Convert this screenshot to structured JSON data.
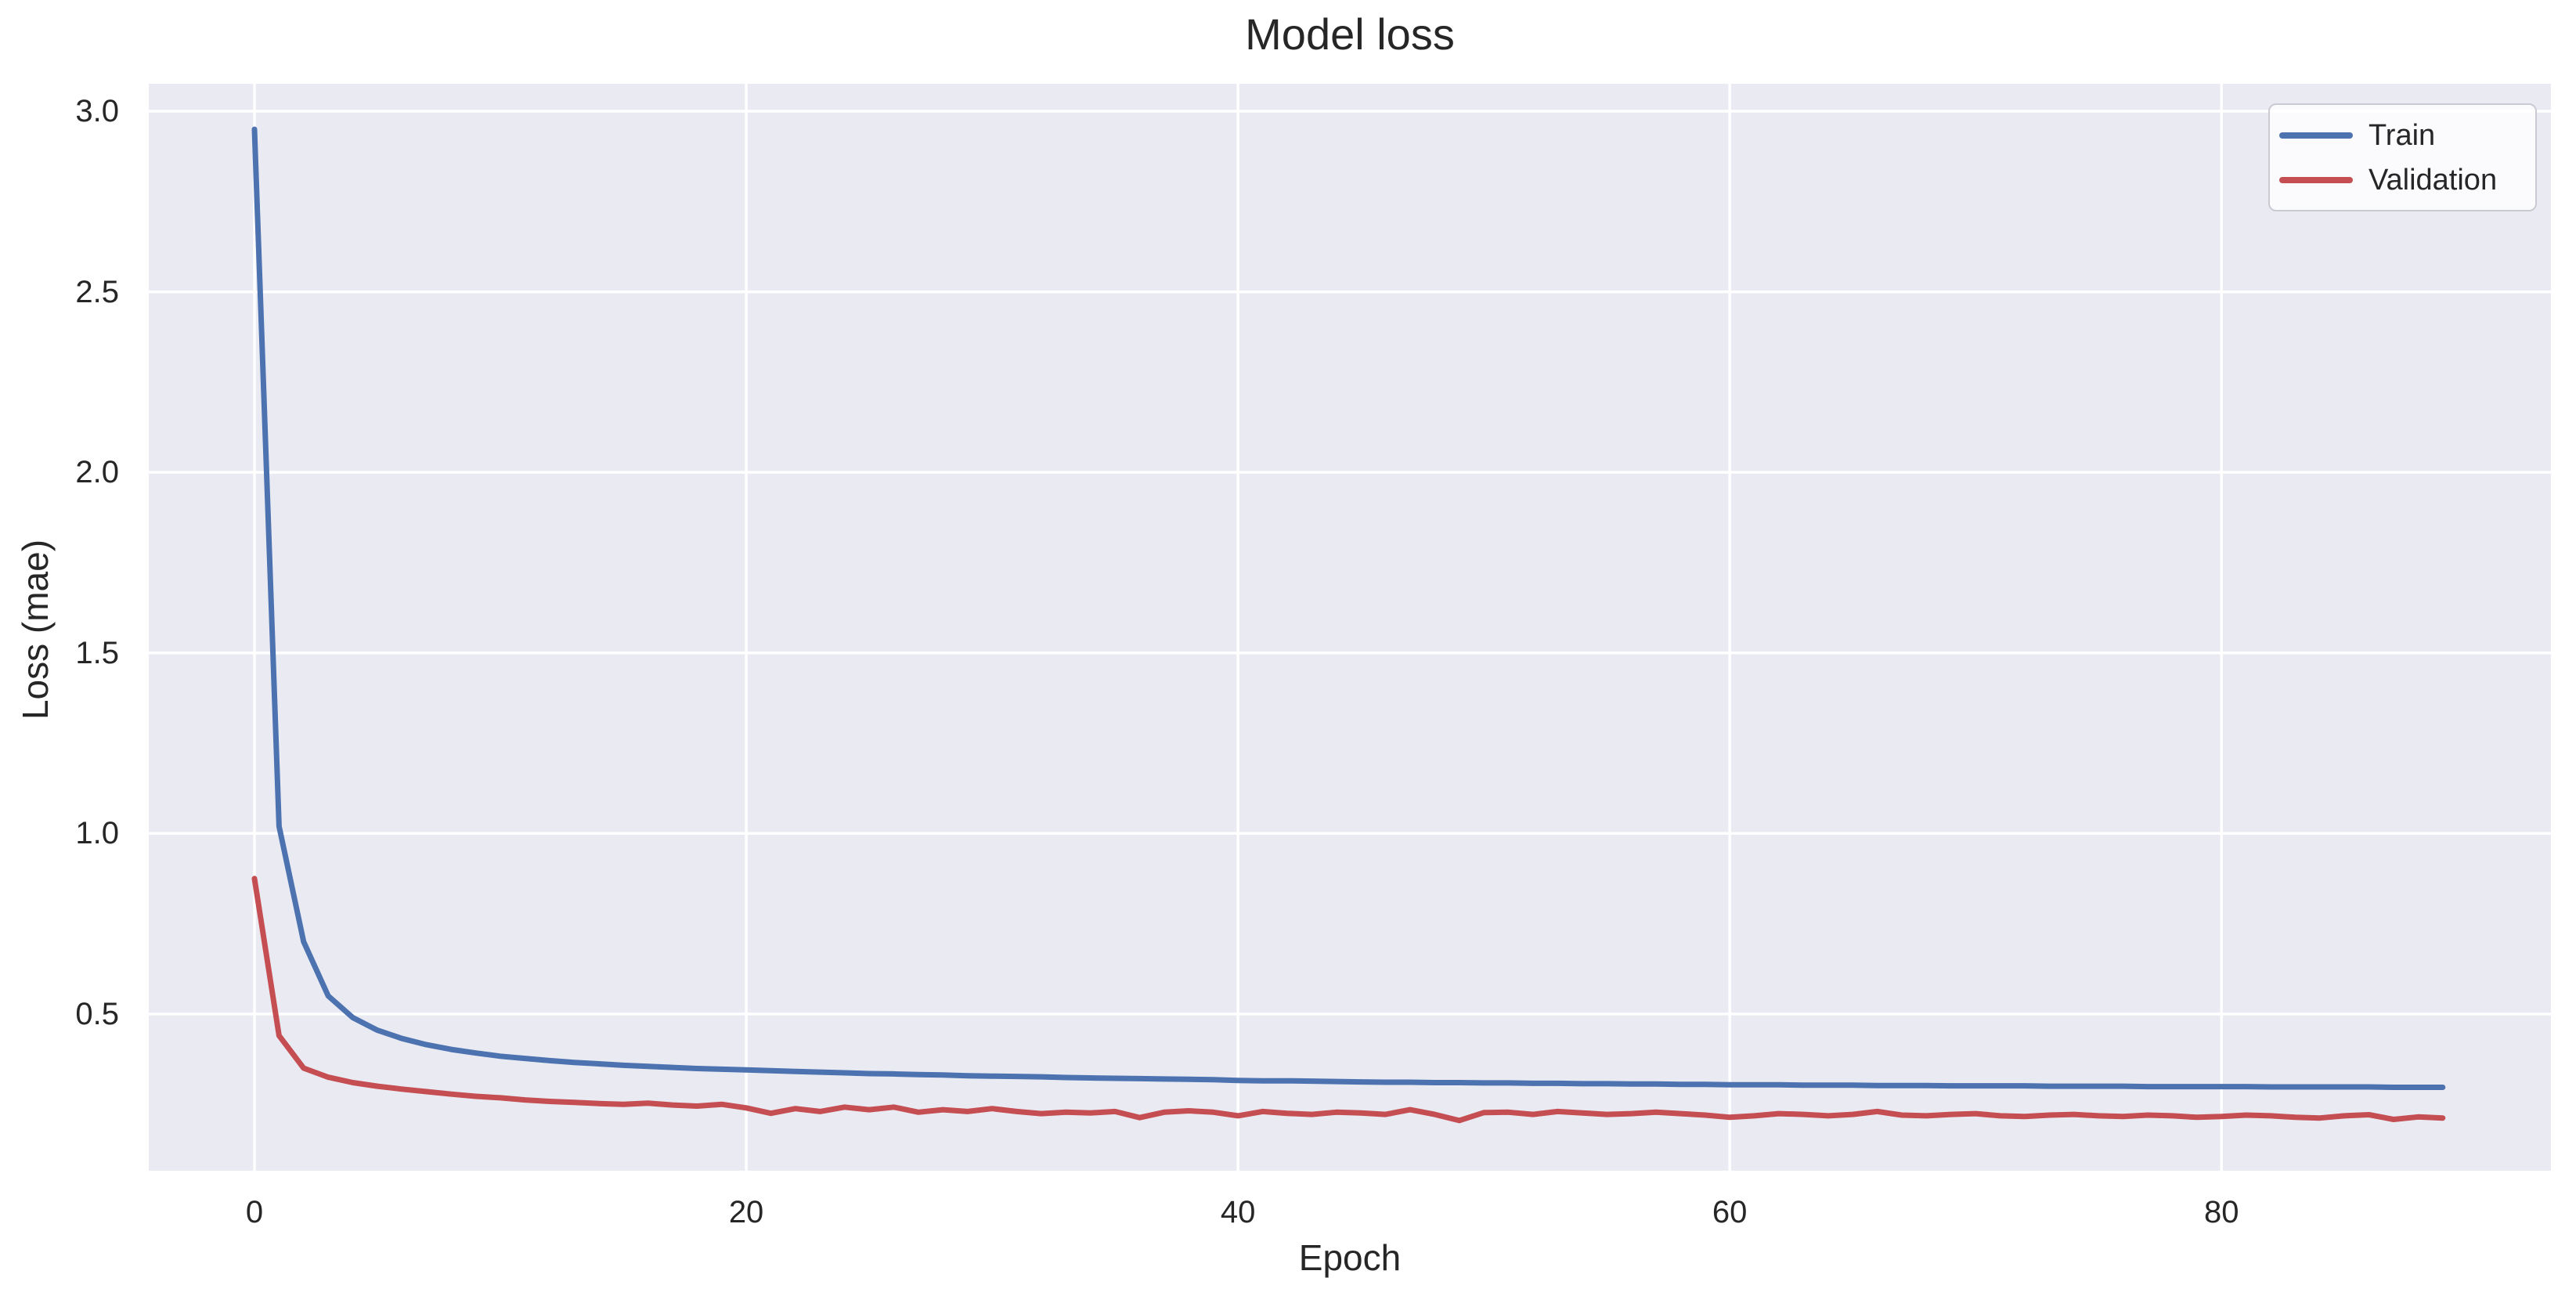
{
  "figure": {
    "title": "Model loss"
  },
  "axes": {
    "xlabel": "Epoch",
    "ylabel": "Loss (mae)"
  },
  "legend": {
    "entries": [
      {
        "label": "Train",
        "color": "#4c72b0"
      },
      {
        "label": "Validation",
        "color": "#c44e52"
      }
    ]
  },
  "colors": {
    "figure_bg": "#ffffff",
    "plot_bg": "#eaeaf2",
    "grid": "#ffffff",
    "text": "#262626",
    "train": "#4c72b0",
    "validation": "#c44e52"
  },
  "chart_data": {
    "type": "line",
    "title": "Model loss",
    "xlabel": "Epoch",
    "ylabel": "Loss (mae)",
    "grid": true,
    "legend_position": "upper right",
    "xlim": [
      -4.3,
      93.4
    ],
    "ylim": [
      0.066,
      3.076
    ],
    "x_ticks": [
      0,
      20,
      40,
      60,
      80
    ],
    "y_ticks": [
      0.5,
      1.0,
      1.5,
      2.0,
      2.5,
      3.0
    ],
    "x": [
      0,
      1,
      2,
      3,
      4,
      5,
      6,
      7,
      8,
      9,
      10,
      11,
      12,
      13,
      14,
      15,
      16,
      17,
      18,
      19,
      20,
      21,
      22,
      23,
      24,
      25,
      26,
      27,
      28,
      29,
      30,
      31,
      32,
      33,
      34,
      35,
      36,
      37,
      38,
      39,
      40,
      41,
      42,
      43,
      44,
      45,
      46,
      47,
      48,
      49,
      50,
      51,
      52,
      53,
      54,
      55,
      56,
      57,
      58,
      59,
      60,
      61,
      62,
      63,
      64,
      65,
      66,
      67,
      68,
      69,
      70,
      71,
      72,
      73,
      74,
      75,
      76,
      77,
      78,
      79,
      80,
      81,
      82,
      83,
      84,
      85,
      86,
      87,
      88,
      89
    ],
    "series": [
      {
        "name": "Train",
        "color": "#4c72b0",
        "values": [
          2.95,
          1.02,
          0.7,
          0.55,
          0.49,
          0.455,
          0.432,
          0.415,
          0.402,
          0.392,
          0.383,
          0.377,
          0.371,
          0.366,
          0.362,
          0.358,
          0.355,
          0.352,
          0.349,
          0.347,
          0.345,
          0.343,
          0.341,
          0.339,
          0.337,
          0.335,
          0.334,
          0.332,
          0.331,
          0.329,
          0.328,
          0.327,
          0.326,
          0.324,
          0.323,
          0.322,
          0.321,
          0.32,
          0.319,
          0.318,
          0.316,
          0.315,
          0.315,
          0.314,
          0.313,
          0.312,
          0.311,
          0.311,
          0.31,
          0.31,
          0.309,
          0.309,
          0.308,
          0.308,
          0.307,
          0.307,
          0.306,
          0.306,
          0.305,
          0.305,
          0.304,
          0.304,
          0.304,
          0.303,
          0.303,
          0.303,
          0.302,
          0.302,
          0.302,
          0.301,
          0.301,
          0.301,
          0.301,
          0.3,
          0.3,
          0.3,
          0.3,
          0.299,
          0.299,
          0.299,
          0.299,
          0.299,
          0.298,
          0.298,
          0.298,
          0.298,
          0.298,
          0.297,
          0.297,
          0.297
        ]
      },
      {
        "name": "Validation",
        "color": "#c44e52",
        "values": [
          0.875,
          0.44,
          0.35,
          0.325,
          0.31,
          0.3,
          0.292,
          0.285,
          0.278,
          0.272,
          0.268,
          0.262,
          0.258,
          0.255,
          0.252,
          0.25,
          0.253,
          0.248,
          0.245,
          0.25,
          0.24,
          0.225,
          0.238,
          0.23,
          0.242,
          0.235,
          0.242,
          0.228,
          0.235,
          0.23,
          0.238,
          0.23,
          0.224,
          0.228,
          0.226,
          0.23,
          0.213,
          0.228,
          0.232,
          0.228,
          0.218,
          0.23,
          0.225,
          0.222,
          0.228,
          0.226,
          0.222,
          0.235,
          0.222,
          0.205,
          0.227,
          0.228,
          0.222,
          0.23,
          0.226,
          0.222,
          0.224,
          0.228,
          0.224,
          0.22,
          0.214,
          0.218,
          0.224,
          0.222,
          0.218,
          0.222,
          0.23,
          0.22,
          0.218,
          0.222,
          0.224,
          0.218,
          0.216,
          0.22,
          0.222,
          0.218,
          0.216,
          0.22,
          0.218,
          0.214,
          0.216,
          0.22,
          0.218,
          0.214,
          0.212,
          0.218,
          0.221,
          0.208,
          0.215,
          0.212
        ]
      }
    ]
  }
}
